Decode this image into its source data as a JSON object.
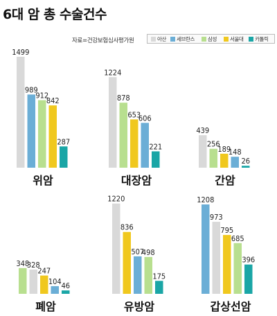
{
  "header": {
    "title": "6대 암 총 수술건수",
    "source": "자료=건강보험심사평가원"
  },
  "legend": [
    {
      "label": "아산",
      "color": "#d9d9d9"
    },
    {
      "label": "세브란스",
      "color": "#6baed6"
    },
    {
      "label": "삼성",
      "color": "#b8df8f"
    },
    {
      "label": "서울대",
      "color": "#f0c81e"
    },
    {
      "label": "카톨릭",
      "color": "#1aa6a6"
    }
  ],
  "chart_data": [
    {
      "type": "bar",
      "category": "위암",
      "series": [
        "아산",
        "세브란스",
        "삼성",
        "서울대",
        "카톨릭"
      ],
      "values": [
        1499,
        989,
        912,
        842,
        287
      ]
    },
    {
      "type": "bar",
      "category": "대장암",
      "series": [
        "아산",
        "삼성",
        "서울대",
        "세브란스",
        "카톨릭"
      ],
      "values": [
        1224,
        878,
        653,
        606,
        221
      ]
    },
    {
      "type": "bar",
      "category": "간암",
      "series": [
        "아산",
        "삼성",
        "서울대",
        "세브란스",
        "카톨릭"
      ],
      "values": [
        439,
        256,
        189,
        148,
        26
      ]
    },
    {
      "type": "bar",
      "category": "폐암",
      "series": [
        "삼성",
        "아산",
        "서울대",
        "세브란스",
        "카톨릭"
      ],
      "values": [
        348,
        328,
        247,
        104,
        46
      ]
    },
    {
      "type": "bar",
      "category": "유방암",
      "series": [
        "아산",
        "서울대",
        "세브란스",
        "삼성",
        "카톨릭"
      ],
      "values": [
        1220,
        836,
        507,
        498,
        175
      ]
    },
    {
      "type": "bar",
      "category": "갑상선암",
      "series": [
        "세브란스",
        "아산",
        "서울대",
        "삼성",
        "카톨릭"
      ],
      "values": [
        1208,
        973,
        795,
        685,
        396
      ]
    }
  ]
}
